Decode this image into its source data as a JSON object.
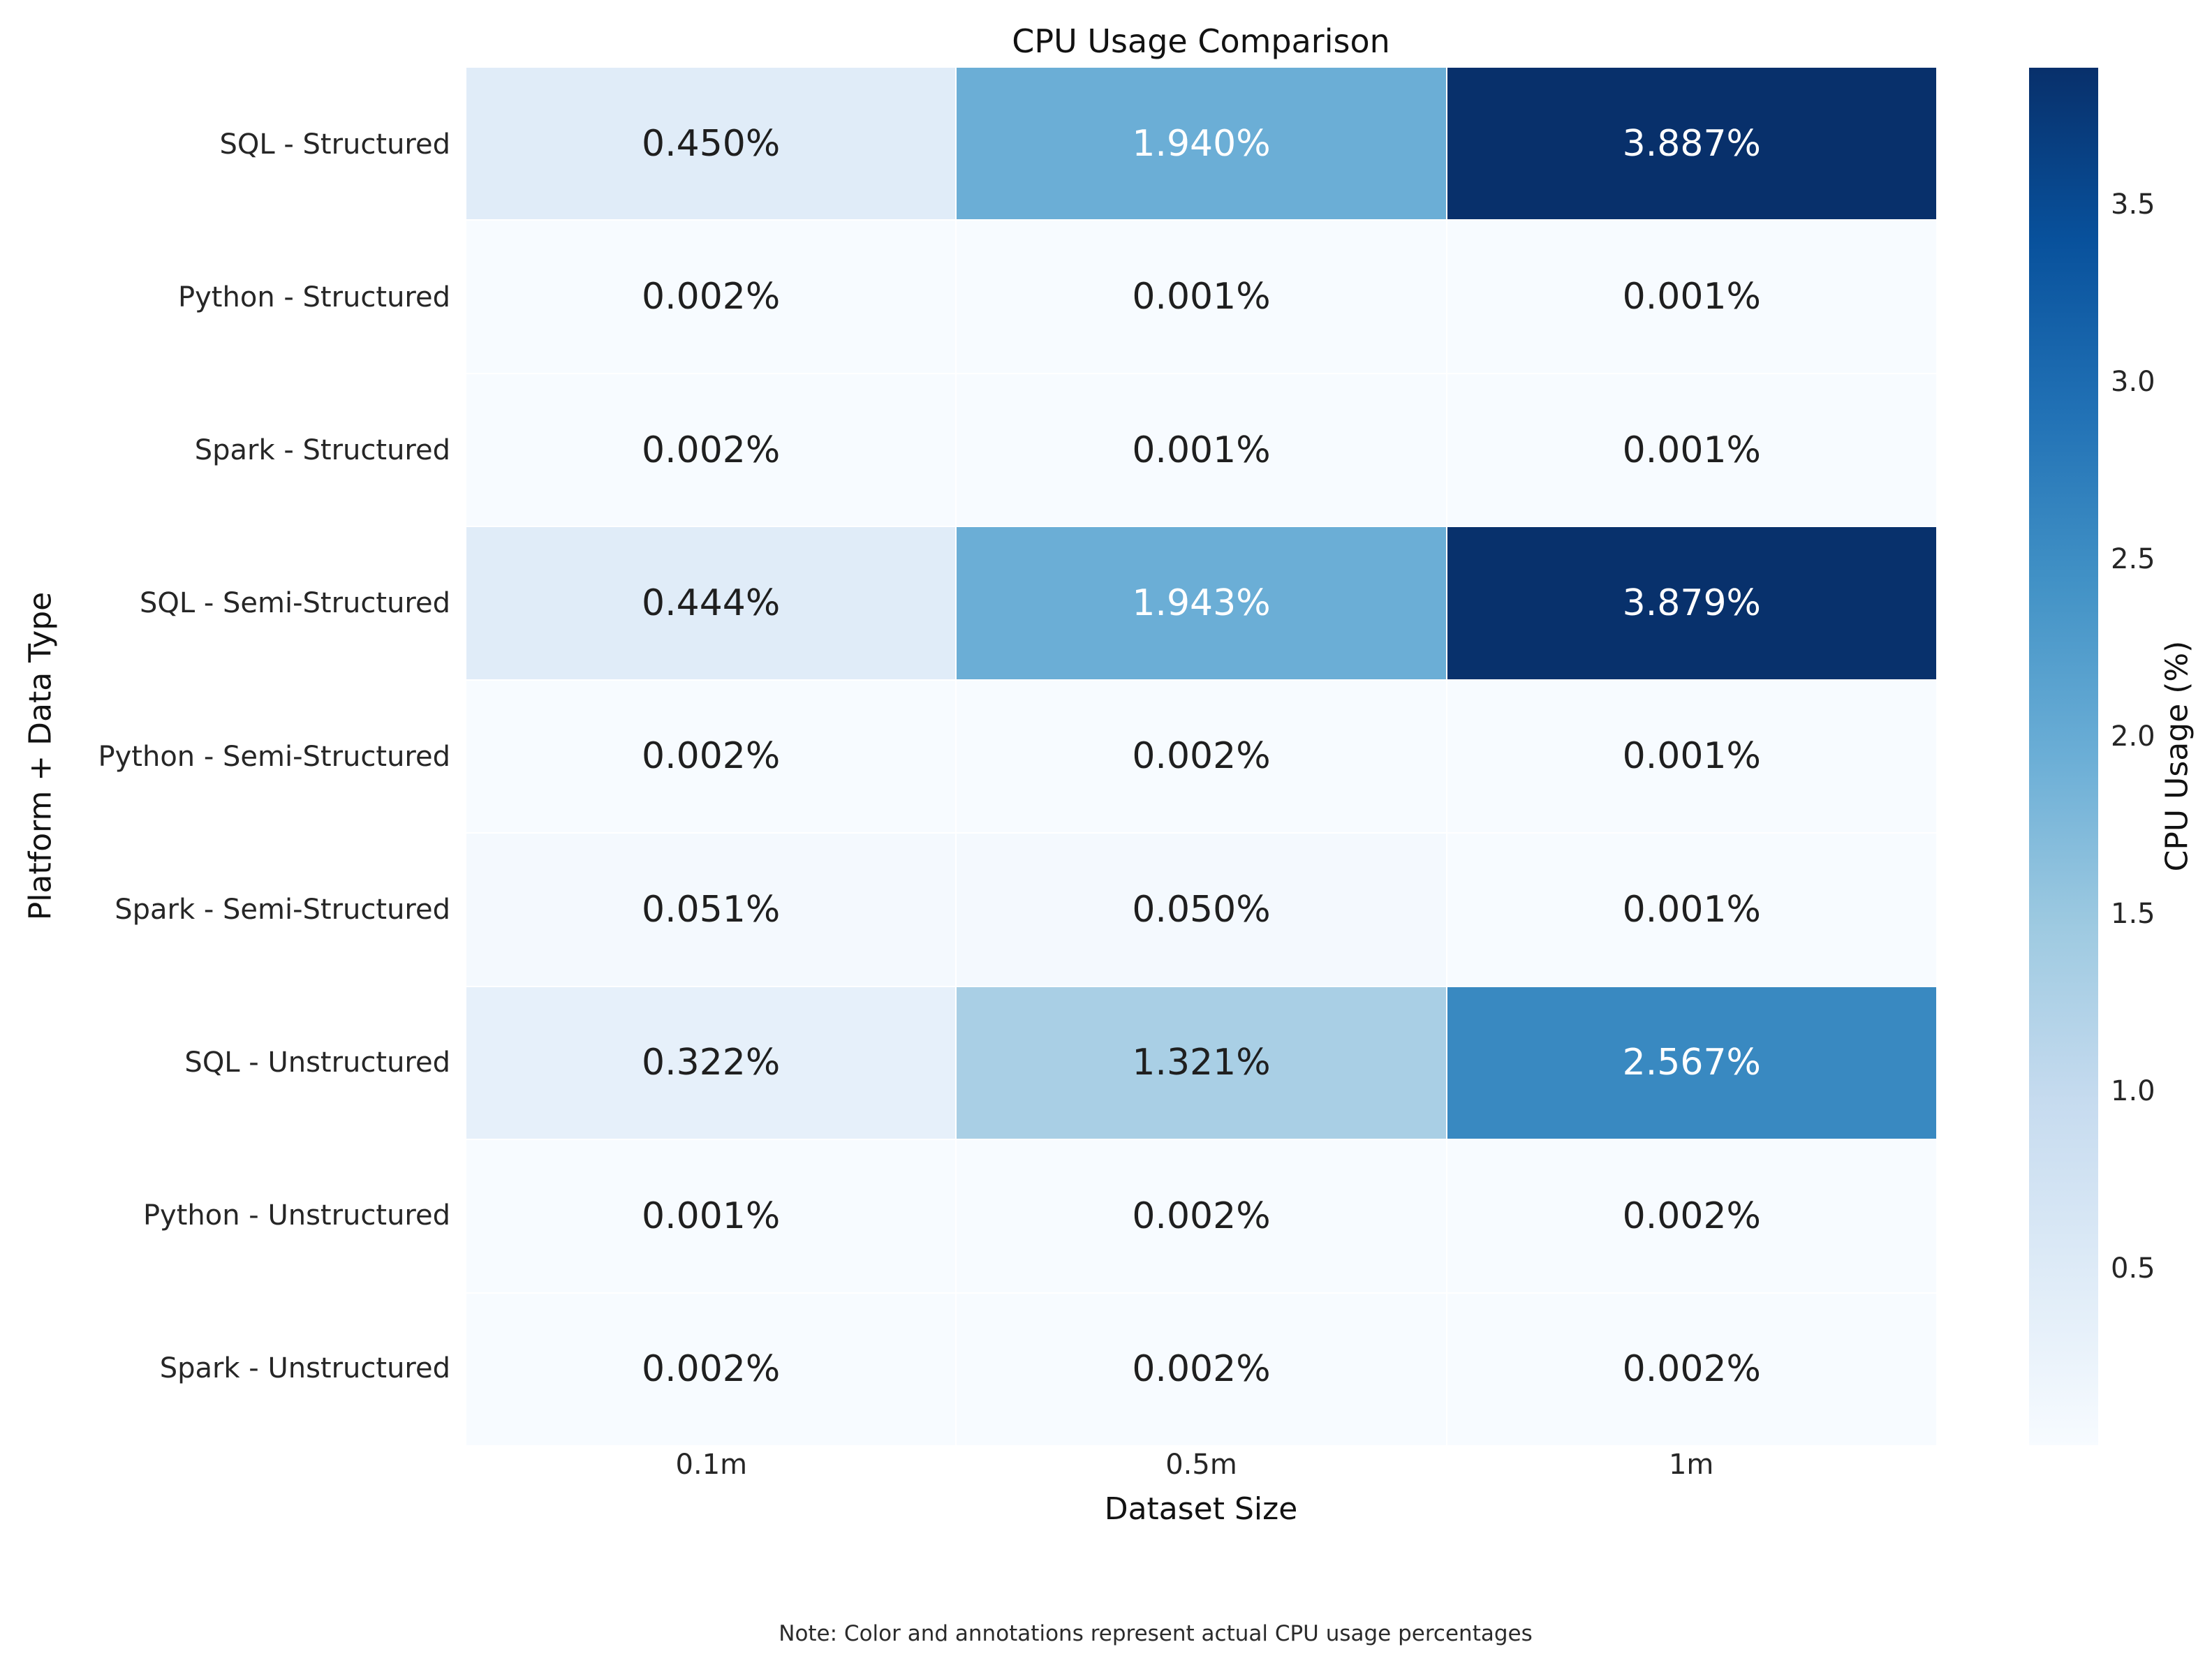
{
  "title": "CPU Usage Comparison",
  "note": "Note: Color and annotations represent actual CPU usage percentages",
  "chart_data": {
    "type": "heatmap",
    "title": "CPU Usage Comparison",
    "xlabel": "Dataset Size",
    "ylabel": "Platform + Data Type",
    "x_categories": [
      "0.1m",
      "0.5m",
      "1m"
    ],
    "y_categories": [
      "SQL - Structured",
      "Python - Structured",
      "Spark - Structured",
      "SQL - Semi-Structured",
      "Python - Semi-Structured",
      "Spark - Semi-Structured",
      "SQL - Unstructured",
      "Python - Unstructured",
      "Spark - Unstructured"
    ],
    "values": [
      [
        0.45,
        1.94,
        3.887
      ],
      [
        0.002,
        0.001,
        0.001
      ],
      [
        0.002,
        0.001,
        0.001
      ],
      [
        0.444,
        1.943,
        3.879
      ],
      [
        0.002,
        0.002,
        0.001
      ],
      [
        0.051,
        0.05,
        0.001
      ],
      [
        0.322,
        1.321,
        2.567
      ],
      [
        0.001,
        0.002,
        0.002
      ],
      [
        0.002,
        0.002,
        0.002
      ]
    ],
    "annotation_format": "3-decimal percent",
    "vmin": 0.001,
    "vmax": 3.887,
    "colormap": "Blues",
    "colormap_stops": [
      "#f7fbff",
      "#deebf7",
      "#c6dbef",
      "#9ecae1",
      "#6baed6",
      "#4292c6",
      "#2171b5",
      "#08519c",
      "#08306b"
    ],
    "colorbar_label": "CPU Usage (%)",
    "colorbar_ticks": [
      0.5,
      1.0,
      1.5,
      2.0,
      2.5,
      3.0,
      3.5
    ],
    "legend_position": "right",
    "grid": false
  }
}
